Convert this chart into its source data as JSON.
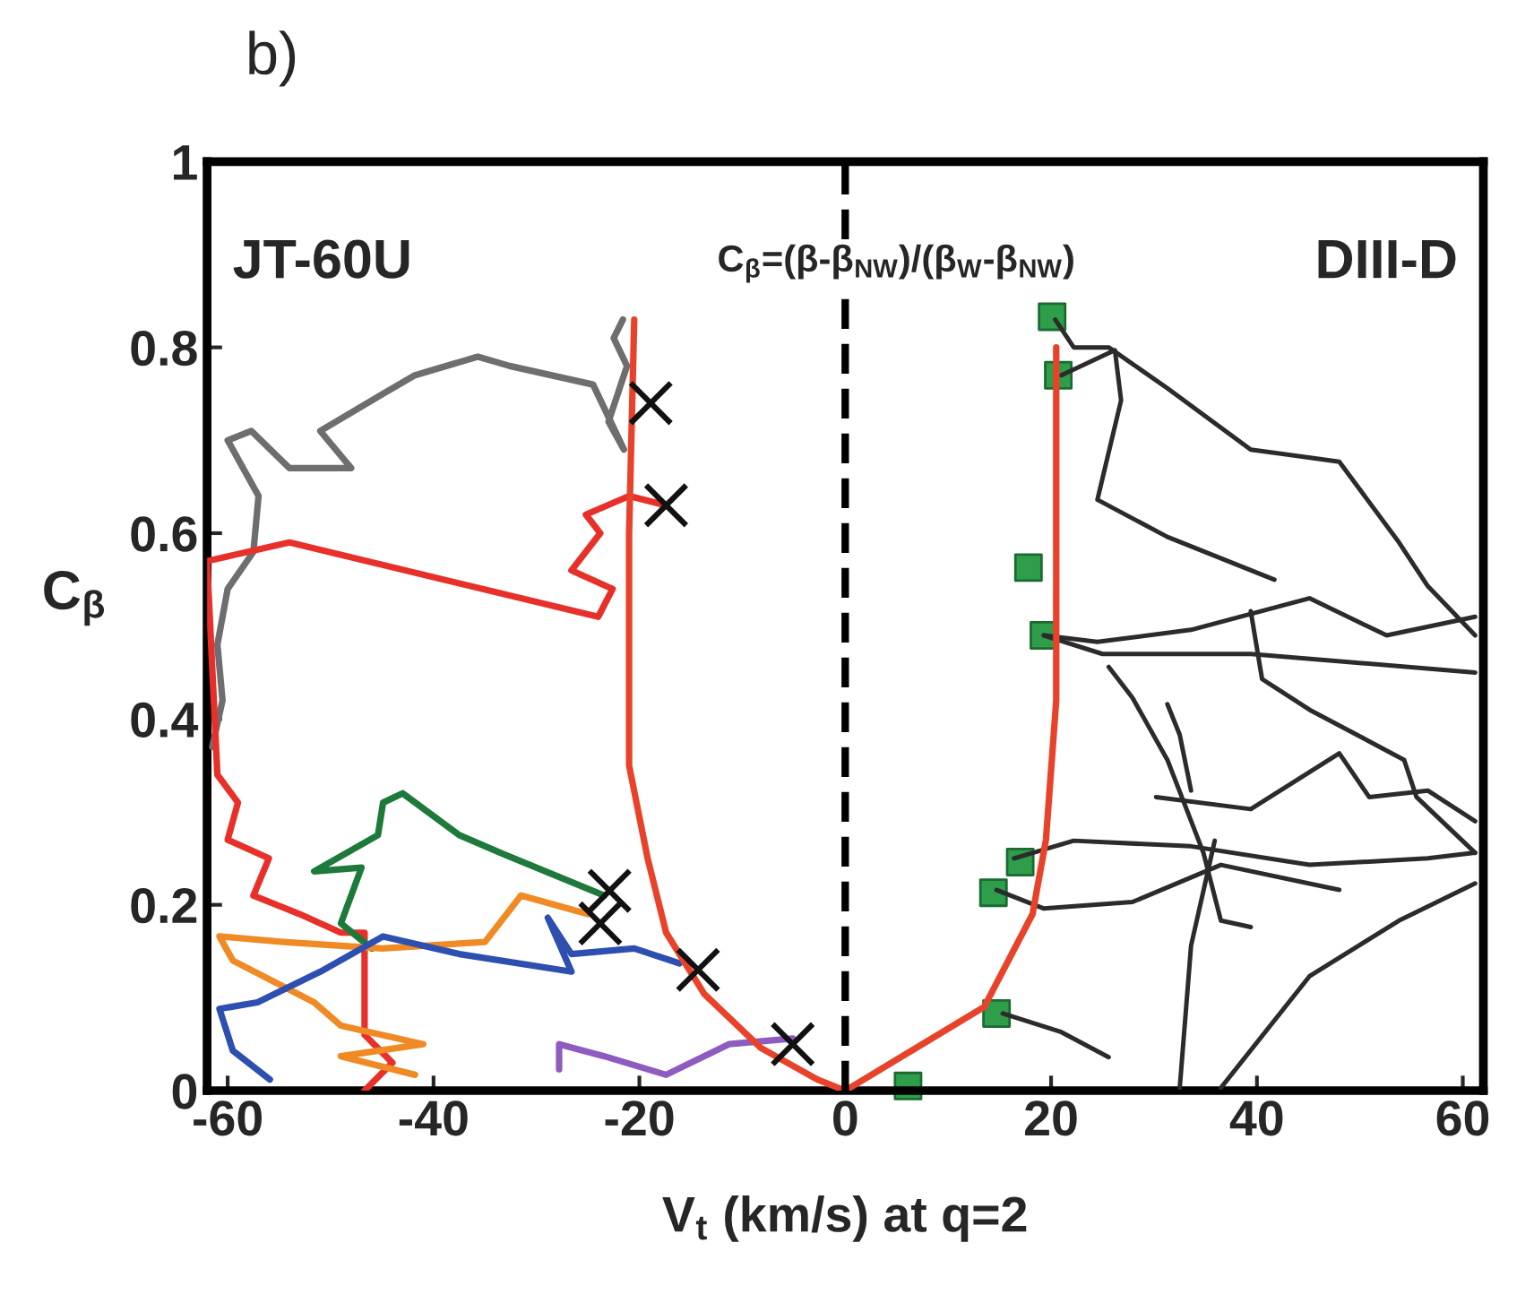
{
  "chart_data": {
    "type": "line",
    "xlabel": "V$_{t}$ (km/s) at q=2",
    "ylabel": "C$_{β}$",
    "annotations": [
      "b)",
      "JT-60U",
      "C$_{β}$=(β-β$_{NW}$)/(β$_{W}$-β$_{NW}$)",
      "DIII-D"
    ],
    "xlim": [
      -62,
      62
    ],
    "xticks": [
      -60,
      -40,
      -20,
      0,
      20,
      40,
      60
    ],
    "ylim": [
      0,
      1
    ],
    "yticks": [
      0,
      0.2,
      0.4,
      0.6,
      0.8,
      1
    ],
    "grid": false,
    "ref_lines": [
      {
        "axis": "x",
        "value": 0,
        "color": "#000000",
        "line_style": "dashed"
      }
    ],
    "series": [
      {
        "color": "#6e6e6e",
        "x": [
          -21.6,
          -22.5,
          -21.2,
          -23.0,
          -21.5,
          -24.5,
          -32.6,
          -35.7,
          -41.8,
          -44.9,
          -51.0,
          -48.0,
          -54.0,
          -57.7,
          -60.0,
          -57.0,
          -57.5,
          -60.0,
          -61.0,
          -60.5,
          -61.5
        ],
        "values": [
          0.83,
          0.81,
          0.78,
          0.72,
          0.69,
          0.76,
          0.78,
          0.79,
          0.77,
          0.75,
          0.71,
          0.67,
          0.67,
          0.71,
          0.7,
          0.64,
          0.58,
          0.54,
          0.48,
          0.42,
          0.37
        ]
      },
      {
        "color": "#e8302a",
        "x": [
          -17.4,
          -21.0,
          -25.2,
          -23.8,
          -26.6,
          -22.6,
          -24.0,
          -54.0,
          -62.0,
          -61.0,
          -59.0,
          -60.0,
          -56.0,
          -57.5,
          -53.0,
          -49.0,
          -46.7,
          -46.7,
          -44.0,
          -46.7
        ],
        "values": [
          0.63,
          0.64,
          0.62,
          0.6,
          0.56,
          0.54,
          0.51,
          0.59,
          0.57,
          0.34,
          0.31,
          0.27,
          0.25,
          0.21,
          0.19,
          0.17,
          0.17,
          0.06,
          0.03,
          0.0
        ]
      },
      {
        "color": "#1e7a3a",
        "x": [
          -23.4,
          -33.3,
          -37.5,
          -43.0,
          -44.9,
          -45.4,
          -51.6,
          -47.0,
          -49.0,
          -46.0
        ],
        "values": [
          0.21,
          0.255,
          0.275,
          0.32,
          0.31,
          0.275,
          0.236,
          0.24,
          0.18,
          0.153
        ]
      },
      {
        "color": "#f08a24",
        "x": [
          -25.0,
          -31.5,
          -35.0,
          -45.0,
          -54.6,
          -60.8,
          -59.5,
          -51.6,
          -49.0,
          -41.0,
          -49.0,
          -41.8
        ],
        "values": [
          0.19,
          0.21,
          0.16,
          0.153,
          0.16,
          0.166,
          0.14,
          0.095,
          0.07,
          0.05,
          0.037,
          0.017
        ]
      },
      {
        "color": "#2d4fb0",
        "x": [
          -16.1,
          -20.5,
          -26.6,
          -28.9,
          -26.6,
          -37.5,
          -44.9,
          -51.0,
          -57.1,
          -60.8,
          -59.5,
          -55.9
        ],
        "values": [
          0.137,
          0.153,
          0.147,
          0.186,
          0.128,
          0.147,
          0.166,
          0.128,
          0.095,
          0.088,
          0.043,
          0.012
        ]
      },
      {
        "color": "#8e5bc0",
        "x": [
          -5.1,
          -11.3,
          -17.4,
          -23.4,
          -27.8,
          -27.8
        ],
        "values": [
          0.056,
          0.05,
          0.017,
          0.037,
          0.05,
          0.023
        ]
      },
      {
        "color": "#2b2b2b",
        "x": [
          20.4,
          22.2,
          25.6,
          31.3,
          39.4,
          48.0,
          53.8,
          56.6,
          61.2
        ],
        "values": [
          0.83,
          0.8,
          0.8,
          0.756,
          0.69,
          0.677,
          0.59,
          0.543,
          0.49
        ]
      },
      {
        "color": "#2b2b2b",
        "x": [
          21.0,
          26.2,
          26.8,
          24.5,
          31.3,
          41.7
        ],
        "values": [
          0.77,
          0.797,
          0.743,
          0.636,
          0.596,
          0.55
        ]
      },
      {
        "color": "#2b2b2b",
        "x": [
          19.3,
          24.5,
          33.6,
          45.1,
          52.6,
          61.2
        ],
        "values": [
          0.49,
          0.483,
          0.496,
          0.53,
          0.49,
          0.51
        ]
      },
      {
        "color": "#2b2b2b",
        "x": [
          19.3,
          25.0,
          39.4,
          61.2
        ],
        "values": [
          0.49,
          0.47,
          0.47,
          0.45
        ]
      },
      {
        "color": "#2b2b2b",
        "x": [
          25.6,
          27.9,
          31.3,
          34.8,
          36.5,
          39.4
        ],
        "values": [
          0.456,
          0.423,
          0.356,
          0.256,
          0.183,
          0.176
        ]
      },
      {
        "color": "#2b2b2b",
        "x": [
          31.3,
          32.5,
          33.6
        ],
        "values": [
          0.416,
          0.383,
          0.323
        ]
      },
      {
        "color": "#2b2b2b",
        "x": [
          39.4,
          40.5,
          45.1,
          54.3,
          55.5,
          61.2
        ],
        "values": [
          0.516,
          0.443,
          0.41,
          0.356,
          0.316,
          0.256
        ]
      },
      {
        "color": "#2b2b2b",
        "x": [
          16.4,
          22.2,
          33.6,
          45.1,
          56.6,
          61.2
        ],
        "values": [
          0.25,
          0.269,
          0.263,
          0.243,
          0.25,
          0.256
        ]
      },
      {
        "color": "#2b2b2b",
        "x": [
          14.7,
          19.3,
          27.9,
          36.5,
          48.0
        ],
        "values": [
          0.216,
          0.196,
          0.203,
          0.243,
          0.216
        ]
      },
      {
        "color": "#2b2b2b",
        "x": [
          15.3,
          21.0,
          25.6
        ],
        "values": [
          0.083,
          0.063,
          0.036
        ]
      },
      {
        "color": "#2b2b2b",
        "x": [
          32.5,
          33.6,
          35.9
        ],
        "values": [
          0.003,
          0.156,
          0.269
        ]
      },
      {
        "color": "#2b2b2b",
        "x": [
          36.5,
          45.1,
          53.8,
          61.2
        ],
        "values": [
          0.003,
          0.123,
          0.183,
          0.223
        ]
      },
      {
        "color": "#2b2b2b",
        "x": [
          30.2,
          39.4,
          48.0,
          50.9,
          56.6,
          61.2
        ],
        "values": [
          0.316,
          0.303,
          0.363,
          0.316,
          0.323,
          0.29
        ]
      },
      {
        "color": "#e8432a",
        "x": [
          -20.5,
          -21.0,
          -21.0,
          -19.2,
          -17.4,
          -13.7,
          -8.2,
          -2.7,
          0,
          13.5,
          18.2,
          19.5,
          20.5,
          20.5
        ],
        "values": [
          0.83,
          0.6,
          0.35,
          0.25,
          0.17,
          0.104,
          0.046,
          0.012,
          0,
          0.09,
          0.19,
          0.27,
          0.42,
          0.8
        ]
      },
      {
        "type": "scatter",
        "marker": "cross",
        "color": "#111111",
        "x": [
          -18.9,
          -17.4,
          -22.9,
          -23.8,
          -14.3,
          -5.1
        ],
        "values": [
          0.74,
          0.63,
          0.215,
          0.18,
          0.13,
          0.05
        ]
      },
      {
        "type": "scatter",
        "marker": "square",
        "color": "#2e9e4a",
        "x": [
          20.1,
          20.7,
          17.8,
          19.3,
          17.0,
          14.4,
          14.7,
          6.1
        ],
        "values": [
          0.833,
          0.77,
          0.563,
          0.49,
          0.246,
          0.213,
          0.083,
          0.005
        ]
      }
    ]
  }
}
